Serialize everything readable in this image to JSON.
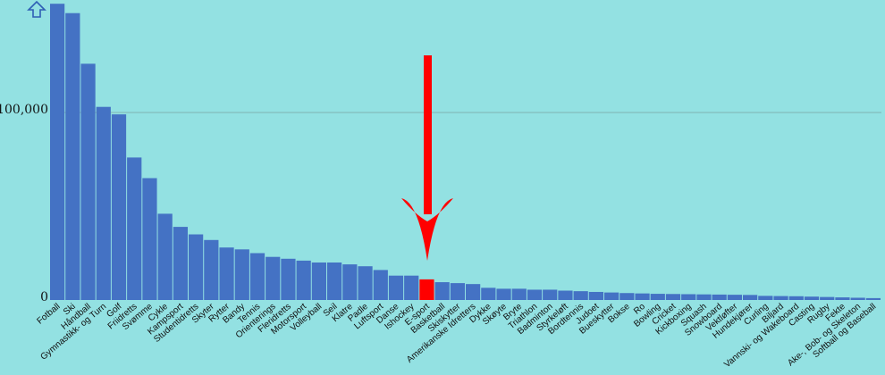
{
  "colors": {
    "background": "#93e1e2",
    "bar": "#4472c4",
    "highlight": "#ff0000",
    "gridline": "#7fb3b3"
  },
  "icons": {
    "top_left": "up-arrow-outline-icon",
    "pointer": "red-down-arrow-icon"
  },
  "chart_data": {
    "type": "bar",
    "ylim": [
      0,
      158000
    ],
    "yticks": [
      {
        "value": 0,
        "label": "0"
      },
      {
        "value": 100000,
        "label": "100,000"
      }
    ],
    "gridlines": [
      100000
    ],
    "highlight_category": "E-sport",
    "categories": [
      "Fotball",
      "Ski",
      "Håndball",
      "Gymnastikk- og Turn",
      "Golf",
      "Friidretts",
      "Svømme",
      "Cykle",
      "Kampsport",
      "Studentidretts",
      "Skyter",
      "Rytter",
      "Bandy",
      "Tennis",
      "Orienterings",
      "Fleridretts",
      "Motorsport",
      "Volleyball",
      "Seil",
      "Klatre",
      "Padle",
      "Luftsport",
      "Danse",
      "Ishockey",
      "E-sport",
      "Basketball",
      "Skiskytter",
      "Amerikanske Idretters",
      "Dykke",
      "Skøyte",
      "Bryte",
      "Triathlon",
      "Badminton",
      "Styrkeløft",
      "Bordtennis",
      "Judoet",
      "Bueskytter",
      "Bokse",
      "Ro",
      "Bowling",
      "Cricket",
      "Kickboxing",
      "Squash",
      "Snowboard",
      "Vektløfter",
      "Hundekjører",
      "Curling",
      "Biljard",
      "Vannski- og Wakeboard",
      "Casting",
      "Rugby",
      "Fekte",
      "Ake-, Bob- og Skeleton",
      "Softball og Baseball"
    ],
    "values": [
      158000,
      153000,
      126000,
      103000,
      99000,
      76000,
      65000,
      46000,
      39000,
      35000,
      32000,
      28000,
      27000,
      25000,
      23000,
      22000,
      21000,
      20000,
      20000,
      19000,
      18000,
      16000,
      13000,
      13000,
      11000,
      9500,
      9000,
      8500,
      6500,
      6000,
      6000,
      5500,
      5500,
      5000,
      4700,
      4300,
      4000,
      3700,
      3500,
      3300,
      3200,
      3100,
      3000,
      2900,
      2800,
      2700,
      2200,
      2100,
      2000,
      1800,
      1600,
      1400,
      1200,
      1000
    ]
  }
}
